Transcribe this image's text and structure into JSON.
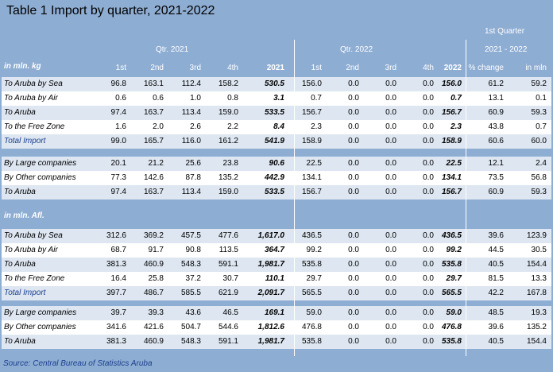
{
  "title": "Table 1 Import by quarter, 2021-2022",
  "header": {
    "group_2021": "Qtr. 2021",
    "group_2022": "Qtr. 2022",
    "first_quarter": "1st Quarter",
    "range": "2021 - 2022",
    "cols": [
      "1st",
      "2nd",
      "3rd",
      "4th",
      "2021",
      "1st",
      "2nd",
      "3rd",
      "4th",
      "2022",
      "% change",
      "in mln"
    ]
  },
  "sections": [
    {
      "unit_label": "in mln. kg",
      "groups": [
        [
          {
            "label": "To Aruba by Sea",
            "values": [
              "96.8",
              "163.1",
              "112.4",
              "158.2",
              "530.5",
              "156.0",
              "0.0",
              "0.0",
              "0.0",
              "156.0",
              "61.2",
              "59.2"
            ],
            "total": false
          },
          {
            "label": "To Aruba by Air",
            "values": [
              "0.6",
              "0.6",
              "1.0",
              "0.8",
              "3.1",
              "0.7",
              "0.0",
              "0.0",
              "0.0",
              "0.7",
              "13.1",
              "0.1"
            ],
            "total": false
          },
          {
            "label": "To Aruba",
            "values": [
              "97.4",
              "163.7",
              "113.4",
              "159.0",
              "533.5",
              "156.7",
              "0.0",
              "0.0",
              "0.0",
              "156.7",
              "60.9",
              "59.3"
            ],
            "total": false
          },
          {
            "label": "To the Free Zone",
            "values": [
              "1.6",
              "2.0",
              "2.6",
              "2.2",
              "8.4",
              "2.3",
              "0.0",
              "0.0",
              "0.0",
              "2.3",
              "43.8",
              "0.7"
            ],
            "total": false
          },
          {
            "label": "Total Import",
            "values": [
              "99.0",
              "165.7",
              "116.0",
              "161.2",
              "541.9",
              "158.9",
              "0.0",
              "0.0",
              "0.0",
              "158.9",
              "60.6",
              "60.0"
            ],
            "total": true
          }
        ],
        [
          {
            "label": "By Large companies",
            "values": [
              "20.1",
              "21.2",
              "25.6",
              "23.8",
              "90.6",
              "22.5",
              "0.0",
              "0.0",
              "0.0",
              "22.5",
              "12.1",
              "2.4"
            ],
            "total": false
          },
          {
            "label": "By Other companies",
            "values": [
              "77.3",
              "142.6",
              "87.8",
              "135.2",
              "442.9",
              "134.1",
              "0.0",
              "0.0",
              "0.0",
              "134.1",
              "73.5",
              "56.8"
            ],
            "total": false
          },
          {
            "label": "To Aruba",
            "values": [
              "97.4",
              "163.7",
              "113.4",
              "159.0",
              "533.5",
              "156.7",
              "0.0",
              "0.0",
              "0.0",
              "156.7",
              "60.9",
              "59.3"
            ],
            "total": false
          }
        ]
      ]
    },
    {
      "unit_label": "in mln. Afl.",
      "groups": [
        [
          {
            "label": "To Aruba by Sea",
            "values": [
              "312.6",
              "369.2",
              "457.5",
              "477.6",
              "1,617.0",
              "436.5",
              "0.0",
              "0.0",
              "0.0",
              "436.5",
              "39.6",
              "123.9"
            ],
            "total": false
          },
          {
            "label": "To Aruba by Air",
            "values": [
              "68.7",
              "91.7",
              "90.8",
              "113.5",
              "364.7",
              "99.2",
              "0.0",
              "0.0",
              "0.0",
              "99.2",
              "44.5",
              "30.5"
            ],
            "total": false
          },
          {
            "label": "To Aruba",
            "values": [
              "381.3",
              "460.9",
              "548.3",
              "591.1",
              "1,981.7",
              "535.8",
              "0.0",
              "0.0",
              "0.0",
              "535.8",
              "40.5",
              "154.4"
            ],
            "total": false
          },
          {
            "label": "To the Free Zone",
            "values": [
              "16.4",
              "25.8",
              "37.2",
              "30.7",
              "110.1",
              "29.7",
              "0.0",
              "0.0",
              "0.0",
              "29.7",
              "81.5",
              "13.3"
            ],
            "total": false
          },
          {
            "label": "Total Import",
            "values": [
              "397.7",
              "486.7",
              "585.5",
              "621.9",
              "2,091.7",
              "565.5",
              "0.0",
              "0.0",
              "0.0",
              "565.5",
              "42.2",
              "167.8"
            ],
            "total": true
          }
        ],
        [
          {
            "label": "By Large companies",
            "values": [
              "39.7",
              "39.3",
              "43.6",
              "46.5",
              "169.1",
              "59.0",
              "0.0",
              "0.0",
              "0.0",
              "59.0",
              "48.5",
              "19.3"
            ],
            "total": false
          },
          {
            "label": "By Other companies",
            "values": [
              "341.6",
              "421.6",
              "504.7",
              "544.6",
              "1,812.6",
              "476.8",
              "0.0",
              "0.0",
              "0.0",
              "476.8",
              "39.6",
              "135.2"
            ],
            "total": false
          },
          {
            "label": "To Aruba",
            "values": [
              "381.3",
              "460.9",
              "548.3",
              "591.1",
              "1,981.7",
              "535.8",
              "0.0",
              "0.0",
              "0.0",
              "535.8",
              "40.5",
              "154.4"
            ],
            "total": false
          }
        ]
      ]
    }
  ],
  "source": "Source: Central Bureau of Statistics Aruba"
}
